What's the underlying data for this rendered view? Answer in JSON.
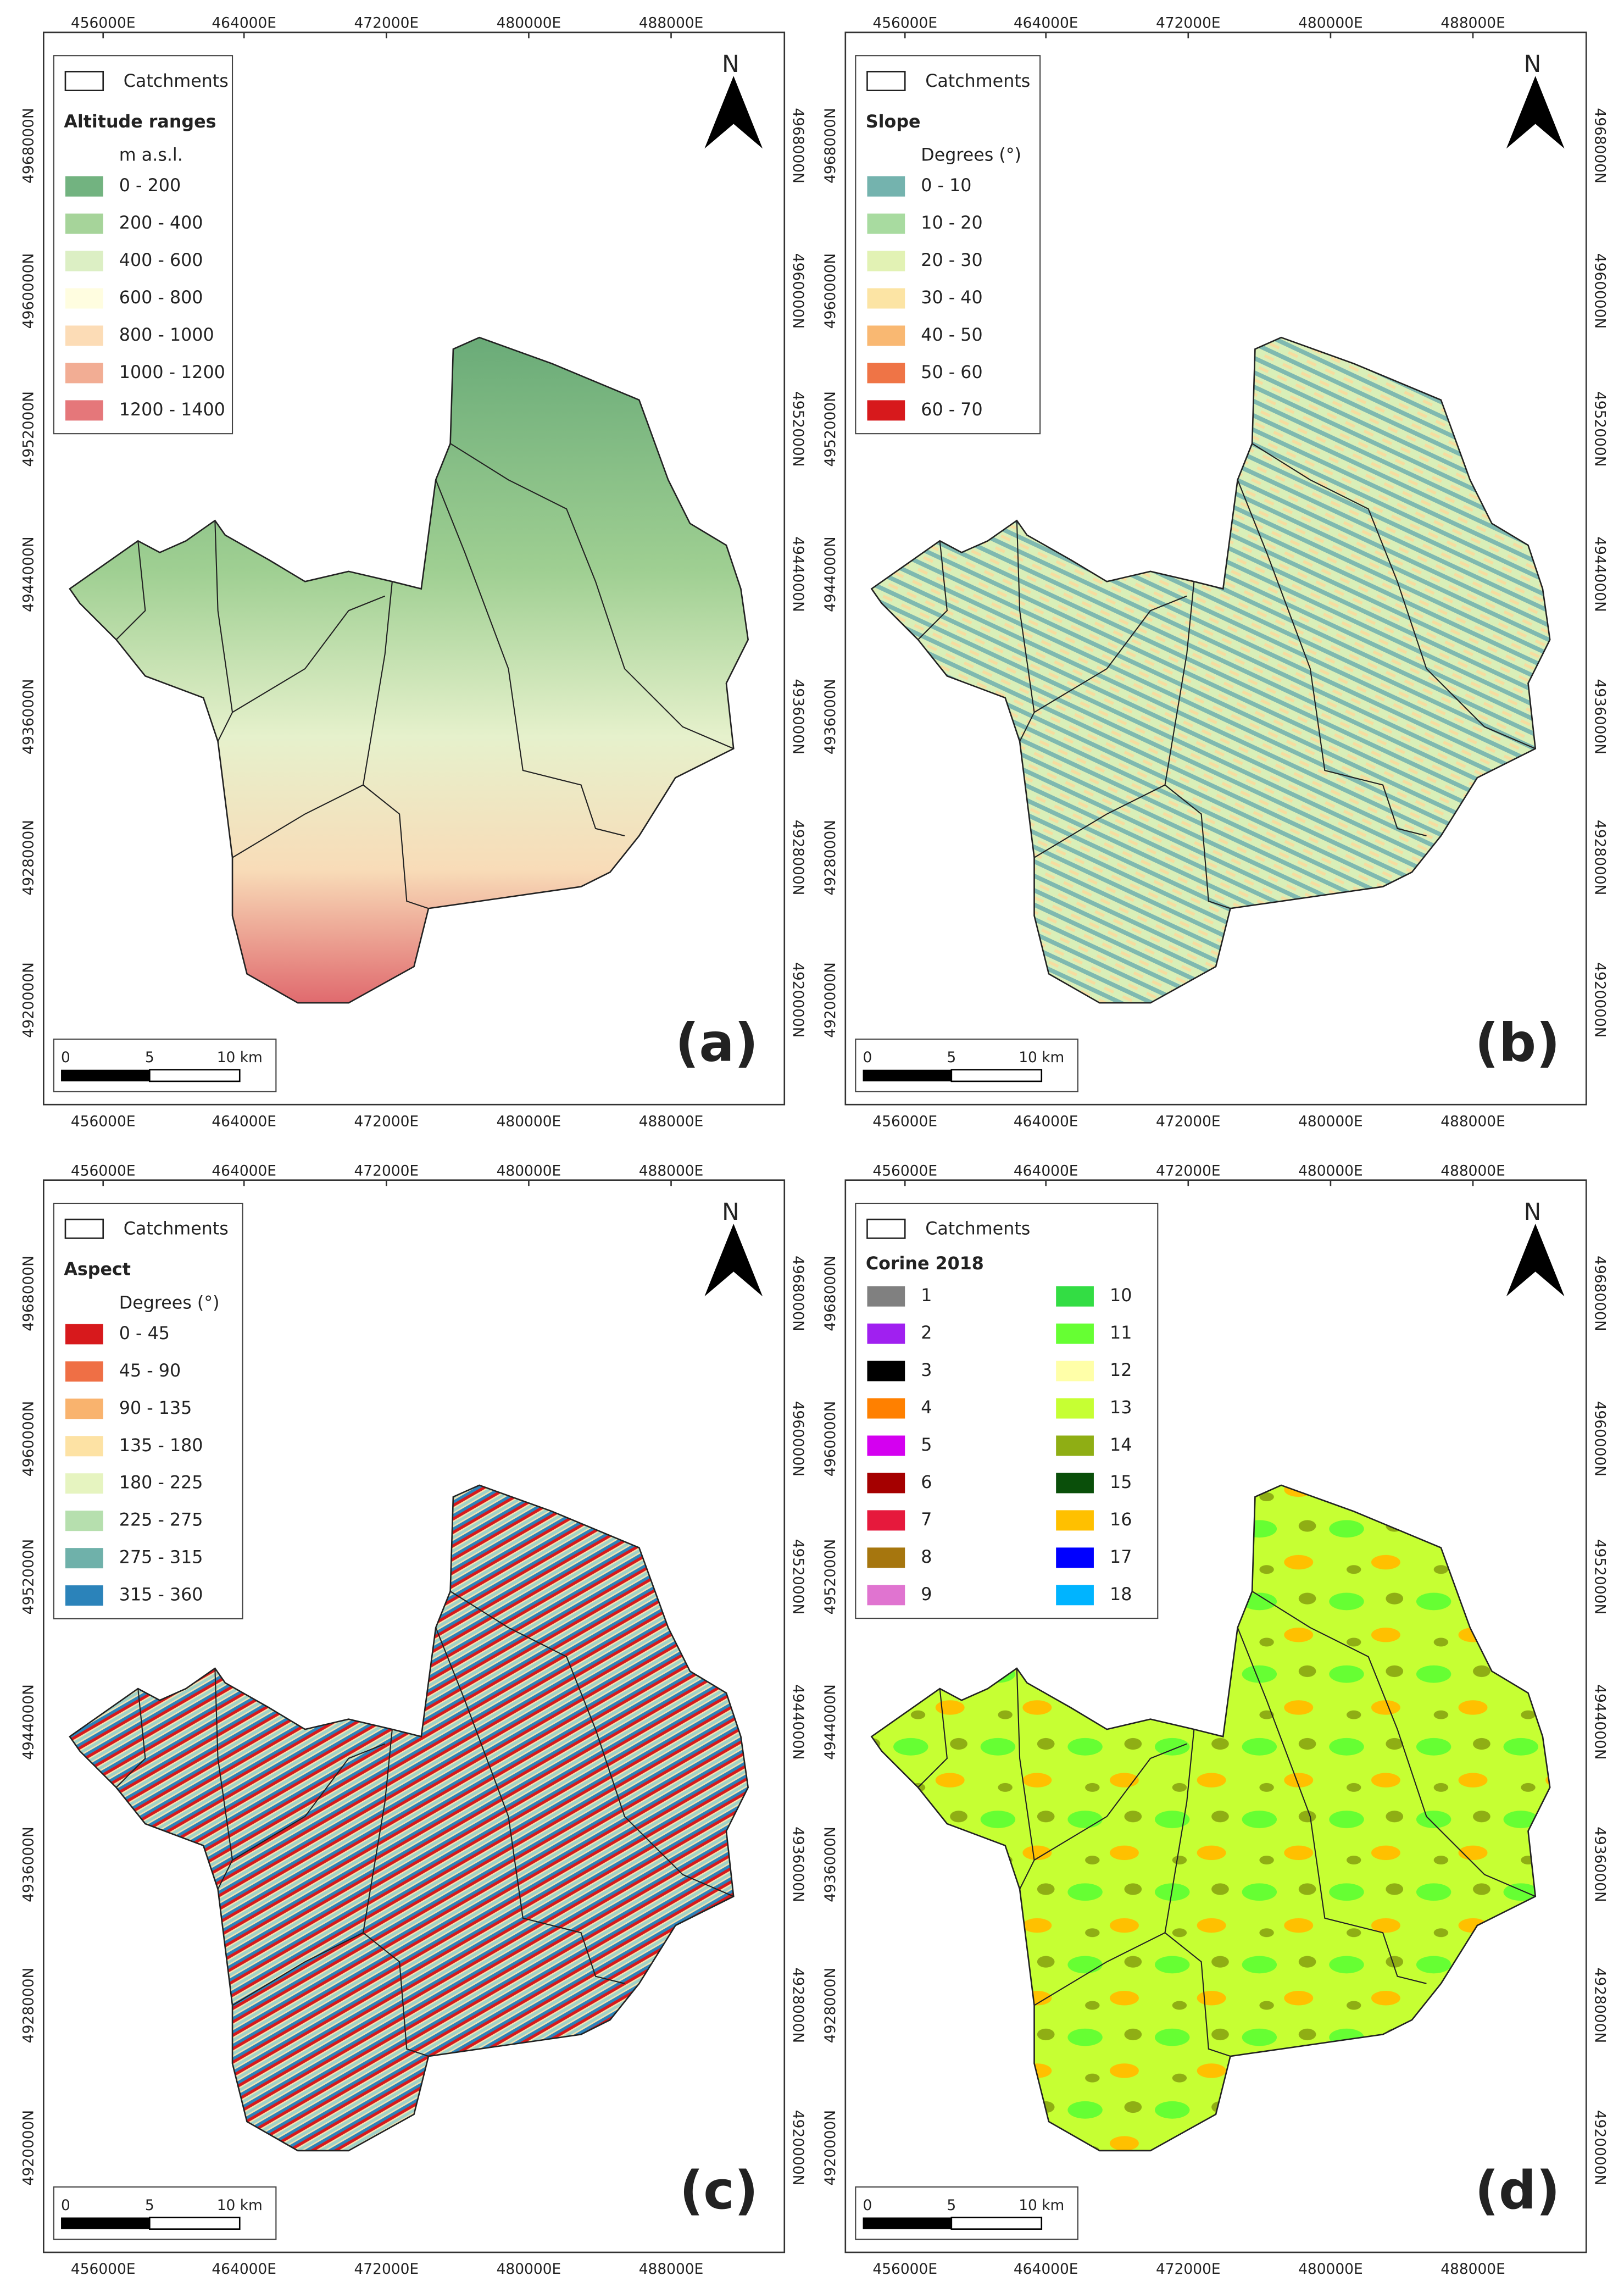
{
  "grid": {
    "x_labels": [
      "456000E",
      "464000E",
      "472000E",
      "480000E",
      "488000E"
    ],
    "y_labels": [
      "4968000N",
      "4960000N",
      "4952000N",
      "4944000N",
      "4936000N",
      "4928000N",
      "4920000N"
    ]
  },
  "north": "N",
  "scale_bar": [
    "0",
    "5",
    "10 km"
  ],
  "panels": [
    {
      "label": "(a)",
      "legend": {
        "catchments": "Catchments",
        "title": "Altitude ranges",
        "unit": "m a.s.l.",
        "items": [
          {
            "label": "0 - 200",
            "color": "#72b380"
          },
          {
            "label": "200 - 400",
            "color": "#a6d49a"
          },
          {
            "label": "400 - 600",
            "color": "#dcefc4"
          },
          {
            "label": "600 - 800",
            "color": "#fffde0"
          },
          {
            "label": "800 - 1000",
            "color": "#fcdcb6"
          },
          {
            "label": "1000 - 1200",
            "color": "#f2ad94"
          },
          {
            "label": "1200 - 1400",
            "color": "#e5777a"
          }
        ]
      }
    },
    {
      "label": "(b)",
      "legend": {
        "catchments": "Catchments",
        "title": "Slope",
        "unit": "Degrees (°)",
        "items": [
          {
            "label": "0 - 10",
            "color": "#74b3ae"
          },
          {
            "label": "10 - 20",
            "color": "#a8dba0"
          },
          {
            "label": "20 - 30",
            "color": "#e2f2b4"
          },
          {
            "label": "30 - 40",
            "color": "#fce4a4"
          },
          {
            "label": "40 - 50",
            "color": "#f9b872"
          },
          {
            "label": "50 - 60",
            "color": "#ef7446"
          },
          {
            "label": "60 - 70",
            "color": "#d7191c"
          }
        ]
      }
    },
    {
      "label": "(c)",
      "legend": {
        "catchments": "Catchments",
        "title": "Aspect",
        "unit": "Degrees (°)",
        "items": [
          {
            "label": "0 - 45",
            "color": "#d7191c"
          },
          {
            "label": "45 - 90",
            "color": "#ef6f45"
          },
          {
            "label": "90 - 135",
            "color": "#f9b36e"
          },
          {
            "label": "135 - 180",
            "color": "#fde2a4"
          },
          {
            "label": "180 - 225",
            "color": "#e6f4c0"
          },
          {
            "label": "225 - 275",
            "color": "#b6dfae"
          },
          {
            "label": "275 - 315",
            "color": "#6fb1aa"
          },
          {
            "label": "315 - 360",
            "color": "#2b83ba"
          }
        ]
      }
    },
    {
      "label": "(d)",
      "legend": {
        "catchments": "Catchments",
        "title": "Corine 2018",
        "items": [
          {
            "label": "1",
            "color": "#808080"
          },
          {
            "label": "2",
            "color": "#a020f0"
          },
          {
            "label": "3",
            "color": "#000000"
          },
          {
            "label": "4",
            "color": "#ff8000"
          },
          {
            "label": "5",
            "color": "#d400f0"
          },
          {
            "label": "6",
            "color": "#a50000"
          },
          {
            "label": "7",
            "color": "#e6193c"
          },
          {
            "label": "8",
            "color": "#a6760e"
          },
          {
            "label": "9",
            "color": "#e074d0"
          },
          {
            "label": "10",
            "color": "#33dd44"
          },
          {
            "label": "11",
            "color": "#66ff33"
          },
          {
            "label": "12",
            "color": "#ffffa8"
          },
          {
            "label": "13",
            "color": "#c6ff33"
          },
          {
            "label": "14",
            "color": "#8fae14"
          },
          {
            "label": "15",
            "color": "#0a4f0a"
          },
          {
            "label": "16",
            "color": "#ffc000"
          },
          {
            "label": "17",
            "color": "#0000ff"
          },
          {
            "label": "18",
            "color": "#00b4ff"
          }
        ]
      }
    }
  ]
}
